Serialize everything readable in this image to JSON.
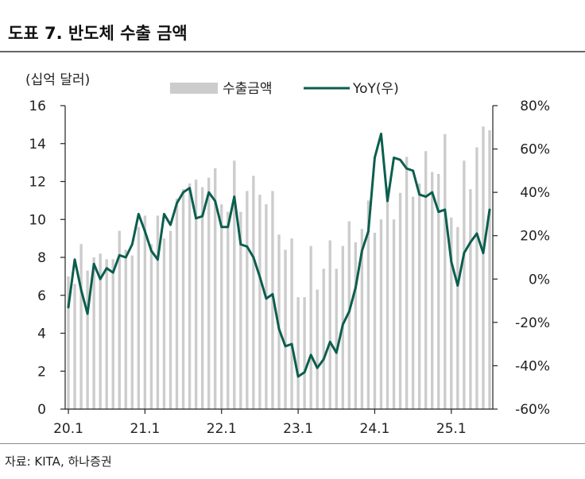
{
  "header": {
    "title": "도표 7. 반도체 수출 금액"
  },
  "footer": {
    "source": "자료: KITA, 하나증권"
  },
  "colors": {
    "bar": "#cccccc",
    "line": "#0b5e4e",
    "axis": "#222222"
  },
  "chart_data": {
    "type": "bar",
    "left_unit": "(십억 달러)",
    "legend": {
      "bar_label": "수출금액",
      "line_label": "YoY(우)",
      "placement": "top-center"
    },
    "ylim_left": [
      0,
      16
    ],
    "ylim_right": [
      -60,
      80
    ],
    "yticks_left": [
      "0",
      "2",
      "4",
      "6",
      "8",
      "10",
      "12",
      "14",
      "16"
    ],
    "yticks_right": [
      "-60%",
      "-40%",
      "-20%",
      "0%",
      "20%",
      "40%",
      "60%",
      "80%"
    ],
    "x_tick_labels": [
      {
        "label": "20.1",
        "index": 0
      },
      {
        "label": "21.1",
        "index": 12
      },
      {
        "label": "22.1",
        "index": 24
      },
      {
        "label": "23.1",
        "index": 36
      },
      {
        "label": "24.1",
        "index": 48
      },
      {
        "label": "25.1",
        "index": 60
      }
    ],
    "series": [
      {
        "name": "수출금액",
        "kind": "bar",
        "axis": "left",
        "values": [
          7.0,
          6.6,
          8.7,
          7.3,
          8.0,
          8.2,
          7.9,
          7.9,
          9.4,
          8.4,
          8.1,
          9.6,
          10.2,
          8.7,
          10.2,
          9.0,
          9.4,
          11.1,
          11.6,
          11.9,
          12.1,
          11.7,
          12.2,
          12.7,
          10.8,
          10.4,
          13.1,
          10.4,
          11.5,
          12.3,
          11.3,
          10.8,
          11.5,
          9.2,
          8.4,
          9.0,
          5.9,
          5.9,
          8.6,
          6.3,
          7.4,
          8.9,
          7.4,
          8.6,
          9.9,
          8.8,
          9.5,
          11.0,
          9.3,
          10.0,
          11.7,
          10.0,
          11.4,
          13.3,
          11.2,
          11.9,
          13.6,
          12.5,
          12.4,
          14.5,
          10.1,
          9.6,
          13.1,
          11.6,
          13.8,
          14.9,
          14.7
        ]
      },
      {
        "name": "YoY(우)",
        "kind": "line",
        "axis": "right",
        "values": [
          -13,
          9,
          -5,
          -16,
          7,
          0,
          5,
          3,
          11,
          10,
          16,
          30,
          22,
          13,
          9,
          30,
          25,
          35,
          40,
          42,
          28,
          29,
          40,
          36,
          24,
          24,
          38,
          16,
          15,
          10,
          1,
          -9,
          -7,
          -23,
          -31,
          -30,
          -45,
          -43,
          -35,
          -41,
          -37,
          -29,
          -34,
          -21,
          -15,
          -4,
          13,
          22,
          56,
          67,
          36,
          56,
          55,
          51,
          50,
          39,
          38,
          40,
          31,
          32,
          8,
          -3,
          12,
          17,
          21,
          12,
          32
        ]
      }
    ],
    "grid": false
  }
}
